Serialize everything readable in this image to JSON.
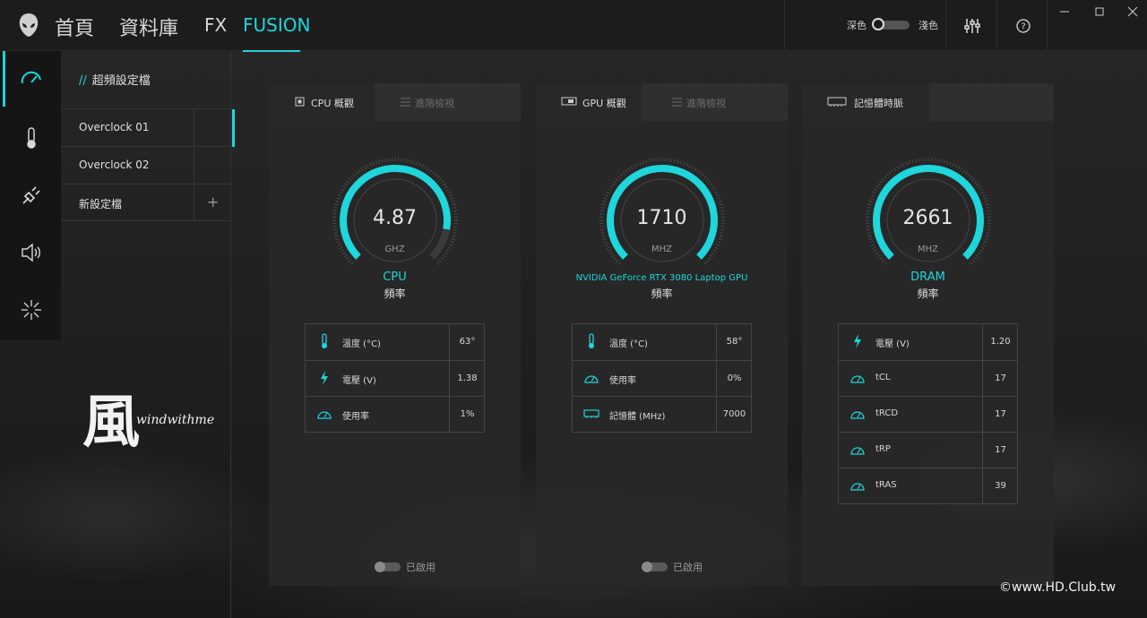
{
  "colors": {
    "accent": "#1ed6db",
    "background": "#1b1b1b",
    "card": "#282828"
  },
  "nav": {
    "home": "首頁",
    "library": "資料庫",
    "fx": "FX",
    "fusion": "FUSION"
  },
  "theme": {
    "dark_label": "深色",
    "light_label": "淺色",
    "mode": "dark"
  },
  "top_icons": [
    "sliders-icon",
    "help-icon"
  ],
  "rail": [
    "speedometer-icon",
    "thermometer-icon",
    "power-plug-icon",
    "speaker-icon",
    "light-burst-icon"
  ],
  "profiles": {
    "title": "超頻設定檔",
    "items": [
      {
        "label": "Overclock 01"
      },
      {
        "label": "Overclock 02"
      },
      {
        "label": "新設定檔",
        "action": "+"
      }
    ]
  },
  "cards": [
    {
      "tab_active": "CPU 概觀",
      "tab_inactive": "進階檢視",
      "gauge_fraction": 0.87,
      "value": "4.87",
      "unit": "GHZ",
      "name": "CPU",
      "sub": "頻率",
      "stats": [
        {
          "icon": "thermometer-icon",
          "label": "溫度 (°C)",
          "value": "63°"
        },
        {
          "icon": "lightning-icon",
          "label": "電壓 (V)",
          "value": "1.38"
        },
        {
          "icon": "gauge-icon",
          "label": "使用率",
          "value": "1%"
        }
      ],
      "toggle_label": "已啟用"
    },
    {
      "tab_active": "GPU 概觀",
      "tab_inactive": "進階檢視",
      "gauge_fraction": 1.0,
      "value": "1710",
      "unit": "MHZ",
      "name": "NVIDIA GeForce RTX 3080 Laptop GPU",
      "sub": "頻率",
      "stats": [
        {
          "icon": "thermometer-icon",
          "label": "溫度 (°C)",
          "value": "58°"
        },
        {
          "icon": "gauge-icon",
          "label": "使用率",
          "value": "0%"
        },
        {
          "icon": "memory-icon",
          "label": "記憶體 (MHz)",
          "value": "7000"
        }
      ],
      "toggle_label": "已啟用"
    },
    {
      "tab_active": "記憶體時脈",
      "gauge_fraction": 1.0,
      "value": "2661",
      "unit": "MHZ",
      "name": "DRAM",
      "sub": "頻率",
      "stats": [
        {
          "icon": "lightning-icon",
          "label": "電壓 (V)",
          "value": "1.20"
        },
        {
          "icon": "gauge-icon",
          "label": "tCL",
          "value": "17"
        },
        {
          "icon": "gauge-icon",
          "label": "tRCD",
          "value": "17"
        },
        {
          "icon": "gauge-icon",
          "label": "tRP",
          "value": "17"
        },
        {
          "icon": "gauge-icon",
          "label": "tRAS",
          "value": "39"
        }
      ]
    }
  ],
  "watermark": {
    "char": "風",
    "text": "windwithme"
  },
  "credit": "©www.HD.Club.tw"
}
